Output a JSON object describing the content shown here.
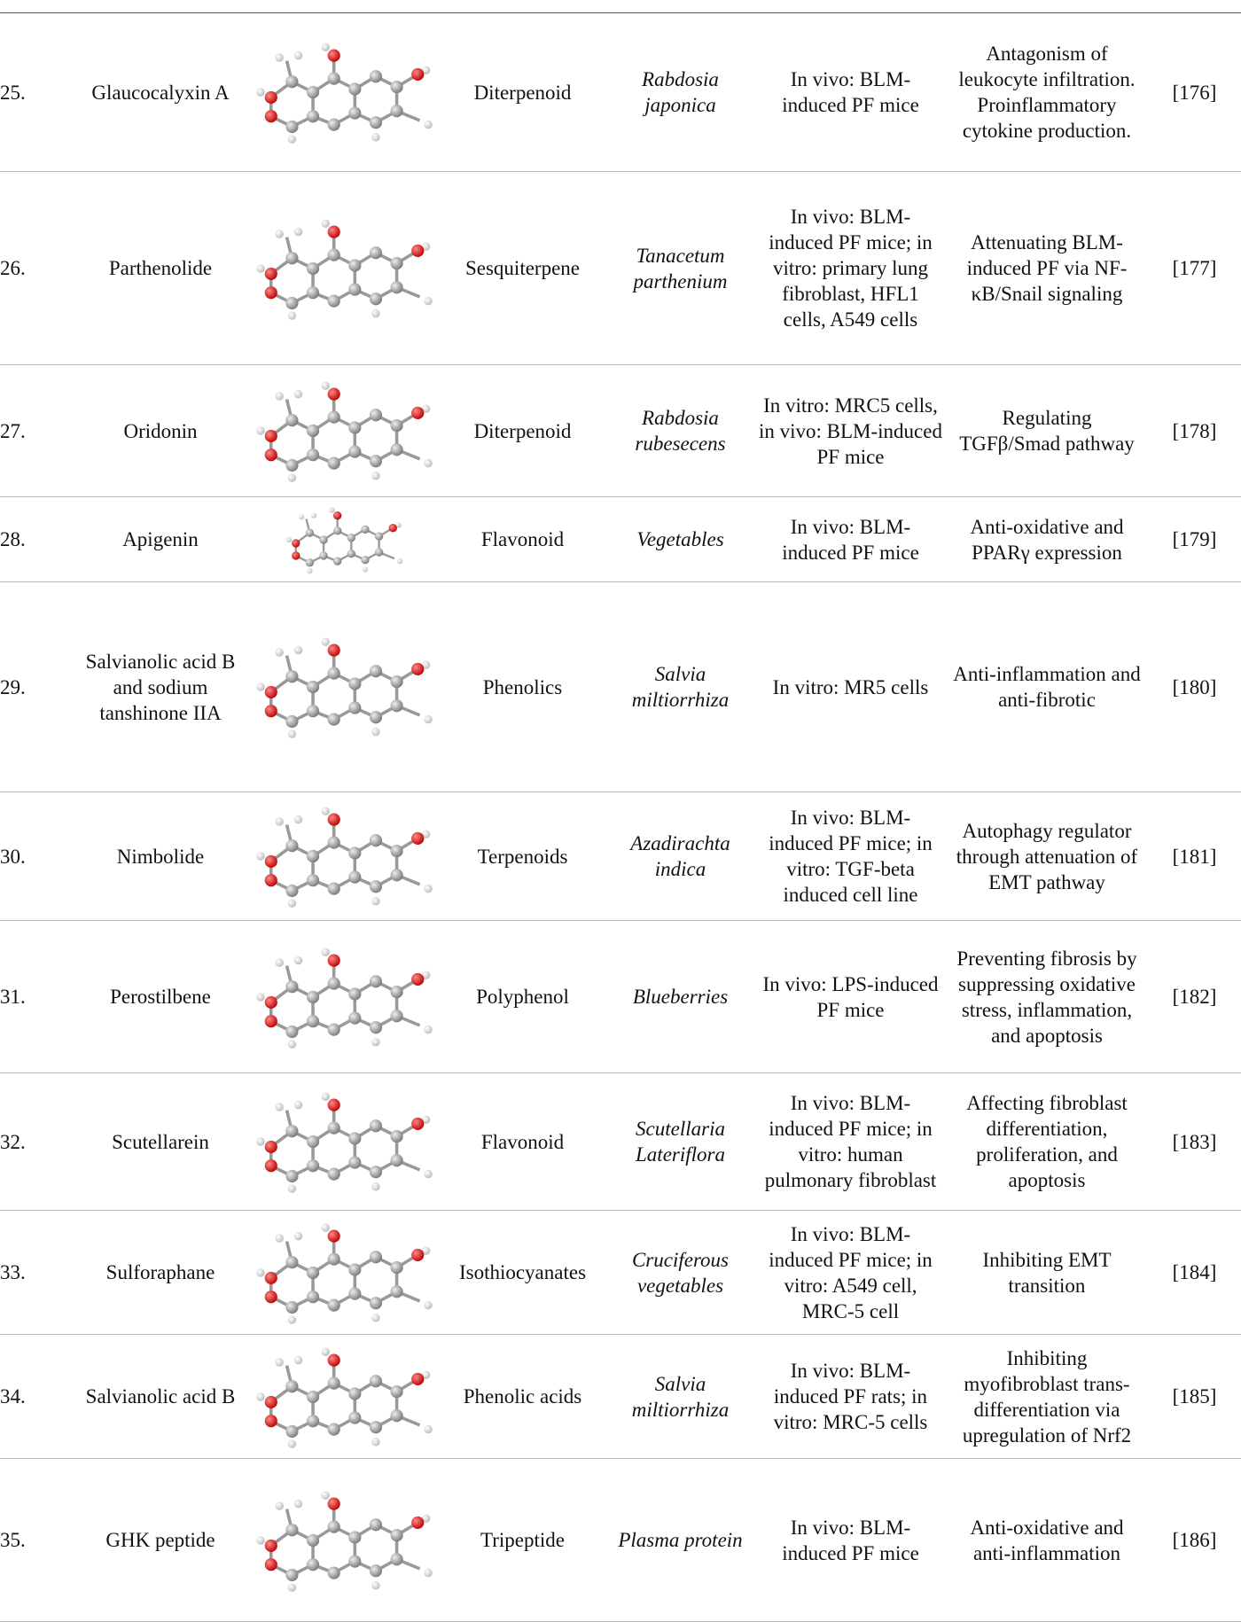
{
  "table": {
    "rows": [
      [
        "25.",
        "Glaucocalyxin A",
        "Diterpenoid",
        "Rabdosia japonica",
        "In vivo: BLM-induced PF mice",
        "Antagonism of leukocyte infiltration. Proinflammatory cytokine production.",
        "[176]"
      ],
      [
        "26.",
        "Parthenolide",
        "Sesquiterpene",
        "Tanacetum parthenium",
        "In vivo: BLM-induced PF mice; in vitro: primary lung fibroblast, HFL1 cells, A549 cells",
        "Attenuating BLM-induced PF via NF-κB/Snail signaling",
        "[177]"
      ],
      [
        "27.",
        "Oridonin",
        "Diterpenoid",
        "Rabdosia rubesecens",
        "In vitro: MRC5 cells, in vivo: BLM-induced PF mice",
        "Regulating TGFβ/Smad pathway",
        "[178]"
      ],
      [
        "28.",
        "Apigenin",
        "Flavonoid",
        "Vegetables",
        "In vivo: BLM-induced PF mice",
        "Anti-oxidative and PPARγ expression",
        "[179]"
      ],
      [
        "29.",
        "Salvianolic acid B and sodium tanshinone IIA",
        "Phenolics",
        "Salvia miltiorrhiza",
        "In vitro: MR5 cells",
        "Anti-inflammation and anti-fibrotic",
        "[180]"
      ],
      [
        "30.",
        "Nimbolide",
        "Terpenoids",
        "Azadirachta indica",
        "In vivo: BLM-induced PF mice; in vitro: TGF-beta induced cell line",
        "Autophagy regulator through attenuation of EMT pathway",
        "[181]"
      ],
      [
        "31.",
        "Perostilbene",
        "Polyphenol",
        "Blueberries",
        "In vivo: LPS-induced PF mice",
        "Preventing fibrosis by suppressing oxidative stress, inflammation, and apoptosis",
        "[182]"
      ],
      [
        "32.",
        "Scutellarein",
        "Flavonoid",
        "Scutellaria Lateriflora",
        "In vivo: BLM-induced PF mice; in vitro: human pulmonary fibroblast",
        "Affecting fibroblast differentiation, proliferation, and apoptosis",
        "[183]"
      ],
      [
        "33.",
        "Sulforaphane",
        "Isothiocyanates",
        "Cruciferous vegetables",
        "In vivo: BLM-induced PF mice; in vitro: A549 cell, MRC-5 cell",
        "Inhibiting EMT transition",
        "[184]"
      ],
      [
        "34.",
        "Salvianolic acid B",
        "Phenolic acids",
        "Salvia miltiorrhiza",
        "In vivo: BLM-induced PF rats; in vitro: MRC-5 cells",
        "Inhibiting myofibroblast trans-differentiation via upregulation of Nrf2",
        "[185]"
      ],
      [
        "35.",
        "GHK peptide",
        "Tripeptide",
        "Plasma protein",
        "In vivo: BLM-induced PF mice",
        "Anti-oxidative and anti-inflammation",
        "[186]"
      ]
    ]
  }
}
